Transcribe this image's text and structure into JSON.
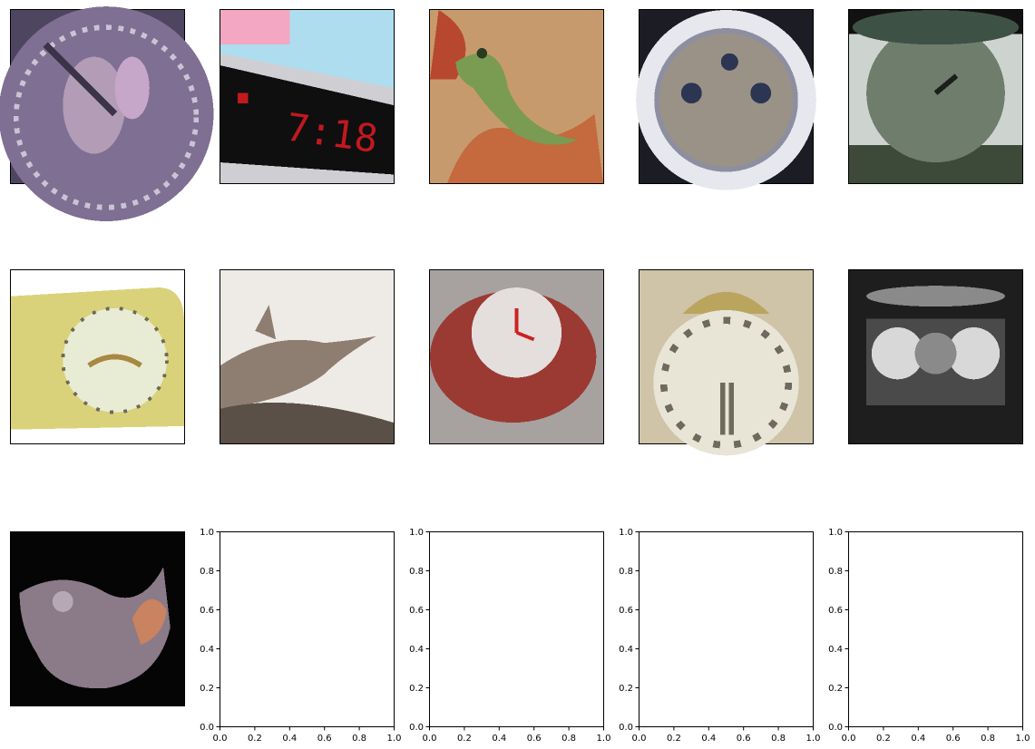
{
  "figure": {
    "grid": {
      "rows": 3,
      "cols": 5
    },
    "thumbnails": [
      {
        "subject": "wall-clock-purple",
        "colors": [
          "#7f6f92",
          "#b29cb6",
          "#4e4560"
        ]
      },
      {
        "subject": "digital-alarm-clock",
        "colors": [
          "#0f0f10",
          "#c1191e",
          "#aeddf0"
        ]
      },
      {
        "subject": "crocodile-painting",
        "colors": [
          "#c79a6d",
          "#7a9b52",
          "#b7482f"
        ]
      },
      {
        "subject": "wall-clock-white",
        "colors": [
          "#e7e7ee",
          "#8d8fa1",
          "#2c3552"
        ]
      },
      {
        "subject": "alarm-clock-green",
        "colors": [
          "#6f7d6c",
          "#3e5145",
          "#111111"
        ]
      },
      {
        "subject": "mantel-clock-yellow",
        "colors": [
          "#d9d27a",
          "#e9ecd5",
          "#6d6a58"
        ]
      },
      {
        "subject": "crocodile-photo",
        "colors": [
          "#eeebe6",
          "#8e7e72",
          "#5b5048"
        ]
      },
      {
        "subject": "clock-red-round",
        "colors": [
          "#9b3a33",
          "#e4dedc",
          "#a7a29f"
        ]
      },
      {
        "subject": "ornate-clock",
        "colors": [
          "#e8e5d7",
          "#6e6a5d",
          "#b9a55e"
        ]
      },
      {
        "subject": "clock-dark",
        "colors": [
          "#1e1e1e",
          "#8a8a8a",
          "#d8d8d8"
        ]
      },
      {
        "subject": "dinosaur-figure",
        "colors": [
          "#050505",
          "#8b7a87",
          "#c98360"
        ]
      }
    ],
    "empty_axes": [
      {
        "xlim": [
          0.0,
          1.0
        ],
        "ylim": [
          0.0,
          1.0
        ],
        "xticks": [
          "0.0",
          "0.2",
          "0.4",
          "0.6",
          "0.8",
          "1.0"
        ],
        "yticks": [
          "0.0",
          "0.2",
          "0.4",
          "0.6",
          "0.8",
          "1.0"
        ]
      },
      {
        "xlim": [
          0.0,
          1.0
        ],
        "ylim": [
          0.0,
          1.0
        ],
        "xticks": [
          "0.0",
          "0.2",
          "0.4",
          "0.6",
          "0.8",
          "1.0"
        ],
        "yticks": [
          "0.0",
          "0.2",
          "0.4",
          "0.6",
          "0.8",
          "1.0"
        ]
      },
      {
        "xlim": [
          0.0,
          1.0
        ],
        "ylim": [
          0.0,
          1.0
        ],
        "xticks": [
          "0.0",
          "0.2",
          "0.4",
          "0.6",
          "0.8",
          "1.0"
        ],
        "yticks": [
          "0.0",
          "0.2",
          "0.4",
          "0.6",
          "0.8",
          "1.0"
        ]
      },
      {
        "xlim": [
          0.0,
          1.0
        ],
        "ylim": [
          0.0,
          1.0
        ],
        "xticks": [
          "0.0",
          "0.2",
          "0.4",
          "0.6",
          "0.8",
          "1.0"
        ],
        "yticks": [
          "0.0",
          "0.2",
          "0.4",
          "0.6",
          "0.8",
          "1.0"
        ]
      }
    ]
  }
}
